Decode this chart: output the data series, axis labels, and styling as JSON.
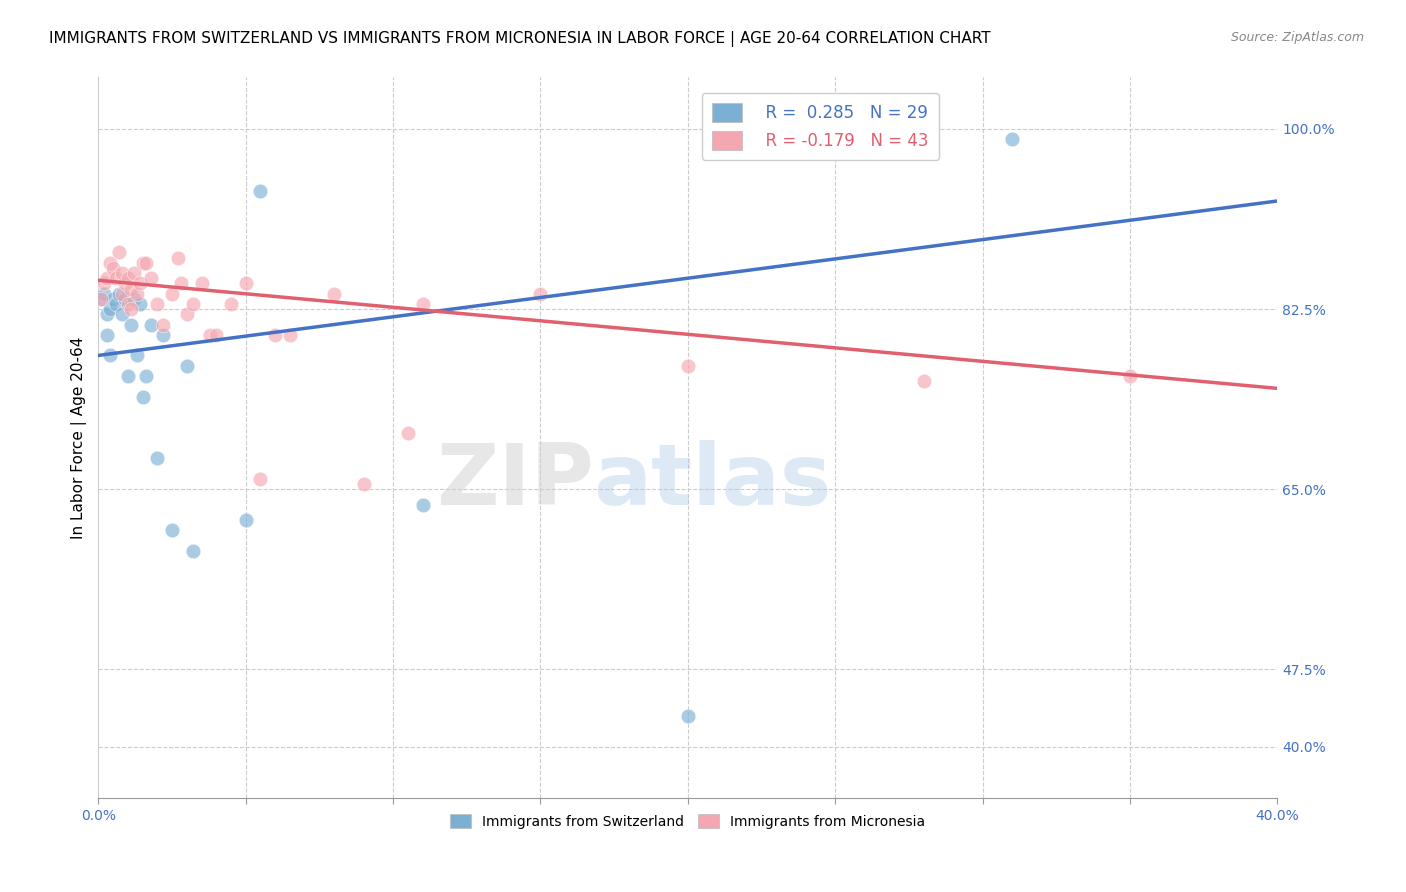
{
  "title": "IMMIGRANTS FROM SWITZERLAND VS IMMIGRANTS FROM MICRONESIA IN LABOR FORCE | AGE 20-64 CORRELATION CHART",
  "source": "Source: ZipAtlas.com",
  "ylabel": "In Labor Force | Age 20-64",
  "xlim": [
    0.0,
    0.4
  ],
  "ylim": [
    0.35,
    1.05
  ],
  "blue_color": "#7bafd4",
  "pink_color": "#f4a7b0",
  "blue_line_color": "#4472c4",
  "pink_line_color": "#e06070",
  "watermark_zip": "ZIP",
  "watermark_atlas": "atlas",
  "blue_scatter_x": [
    0.001,
    0.002,
    0.003,
    0.003,
    0.004,
    0.004,
    0.005,
    0.006,
    0.007,
    0.008,
    0.009,
    0.01,
    0.011,
    0.012,
    0.013,
    0.014,
    0.015,
    0.016,
    0.018,
    0.02,
    0.022,
    0.025,
    0.03,
    0.032,
    0.05,
    0.055,
    0.11,
    0.2,
    0.31
  ],
  "blue_scatter_y": [
    0.835,
    0.84,
    0.82,
    0.8,
    0.825,
    0.78,
    0.835,
    0.83,
    0.84,
    0.82,
    0.835,
    0.76,
    0.81,
    0.835,
    0.78,
    0.83,
    0.74,
    0.76,
    0.81,
    0.68,
    0.8,
    0.61,
    0.77,
    0.59,
    0.62,
    0.94,
    0.635,
    0.43,
    0.99
  ],
  "pink_scatter_x": [
    0.001,
    0.002,
    0.003,
    0.004,
    0.005,
    0.006,
    0.007,
    0.008,
    0.008,
    0.009,
    0.01,
    0.01,
    0.011,
    0.011,
    0.012,
    0.013,
    0.014,
    0.015,
    0.016,
    0.018,
    0.02,
    0.022,
    0.025,
    0.027,
    0.028,
    0.03,
    0.032,
    0.035,
    0.038,
    0.04,
    0.045,
    0.05,
    0.055,
    0.06,
    0.065,
    0.08,
    0.09,
    0.105,
    0.11,
    0.15,
    0.2,
    0.28,
    0.35
  ],
  "pink_scatter_y": [
    0.835,
    0.85,
    0.855,
    0.87,
    0.865,
    0.855,
    0.88,
    0.86,
    0.84,
    0.85,
    0.855,
    0.83,
    0.845,
    0.825,
    0.86,
    0.84,
    0.85,
    0.87,
    0.87,
    0.855,
    0.83,
    0.81,
    0.84,
    0.875,
    0.85,
    0.82,
    0.83,
    0.85,
    0.8,
    0.8,
    0.83,
    0.85,
    0.66,
    0.8,
    0.8,
    0.84,
    0.655,
    0.705,
    0.83,
    0.84,
    0.77,
    0.755,
    0.76
  ],
  "background_color": "#ffffff",
  "grid_color": "#cccccc",
  "right_ytick_positions": [
    0.4,
    0.475,
    0.65,
    0.825,
    1.0
  ],
  "right_ytick_labels": [
    "40.0%",
    "47.5%",
    "65.0%",
    "82.5%",
    "100.0%"
  ],
  "title_fontsize": 11,
  "axis_label_fontsize": 11,
  "tick_fontsize": 10
}
